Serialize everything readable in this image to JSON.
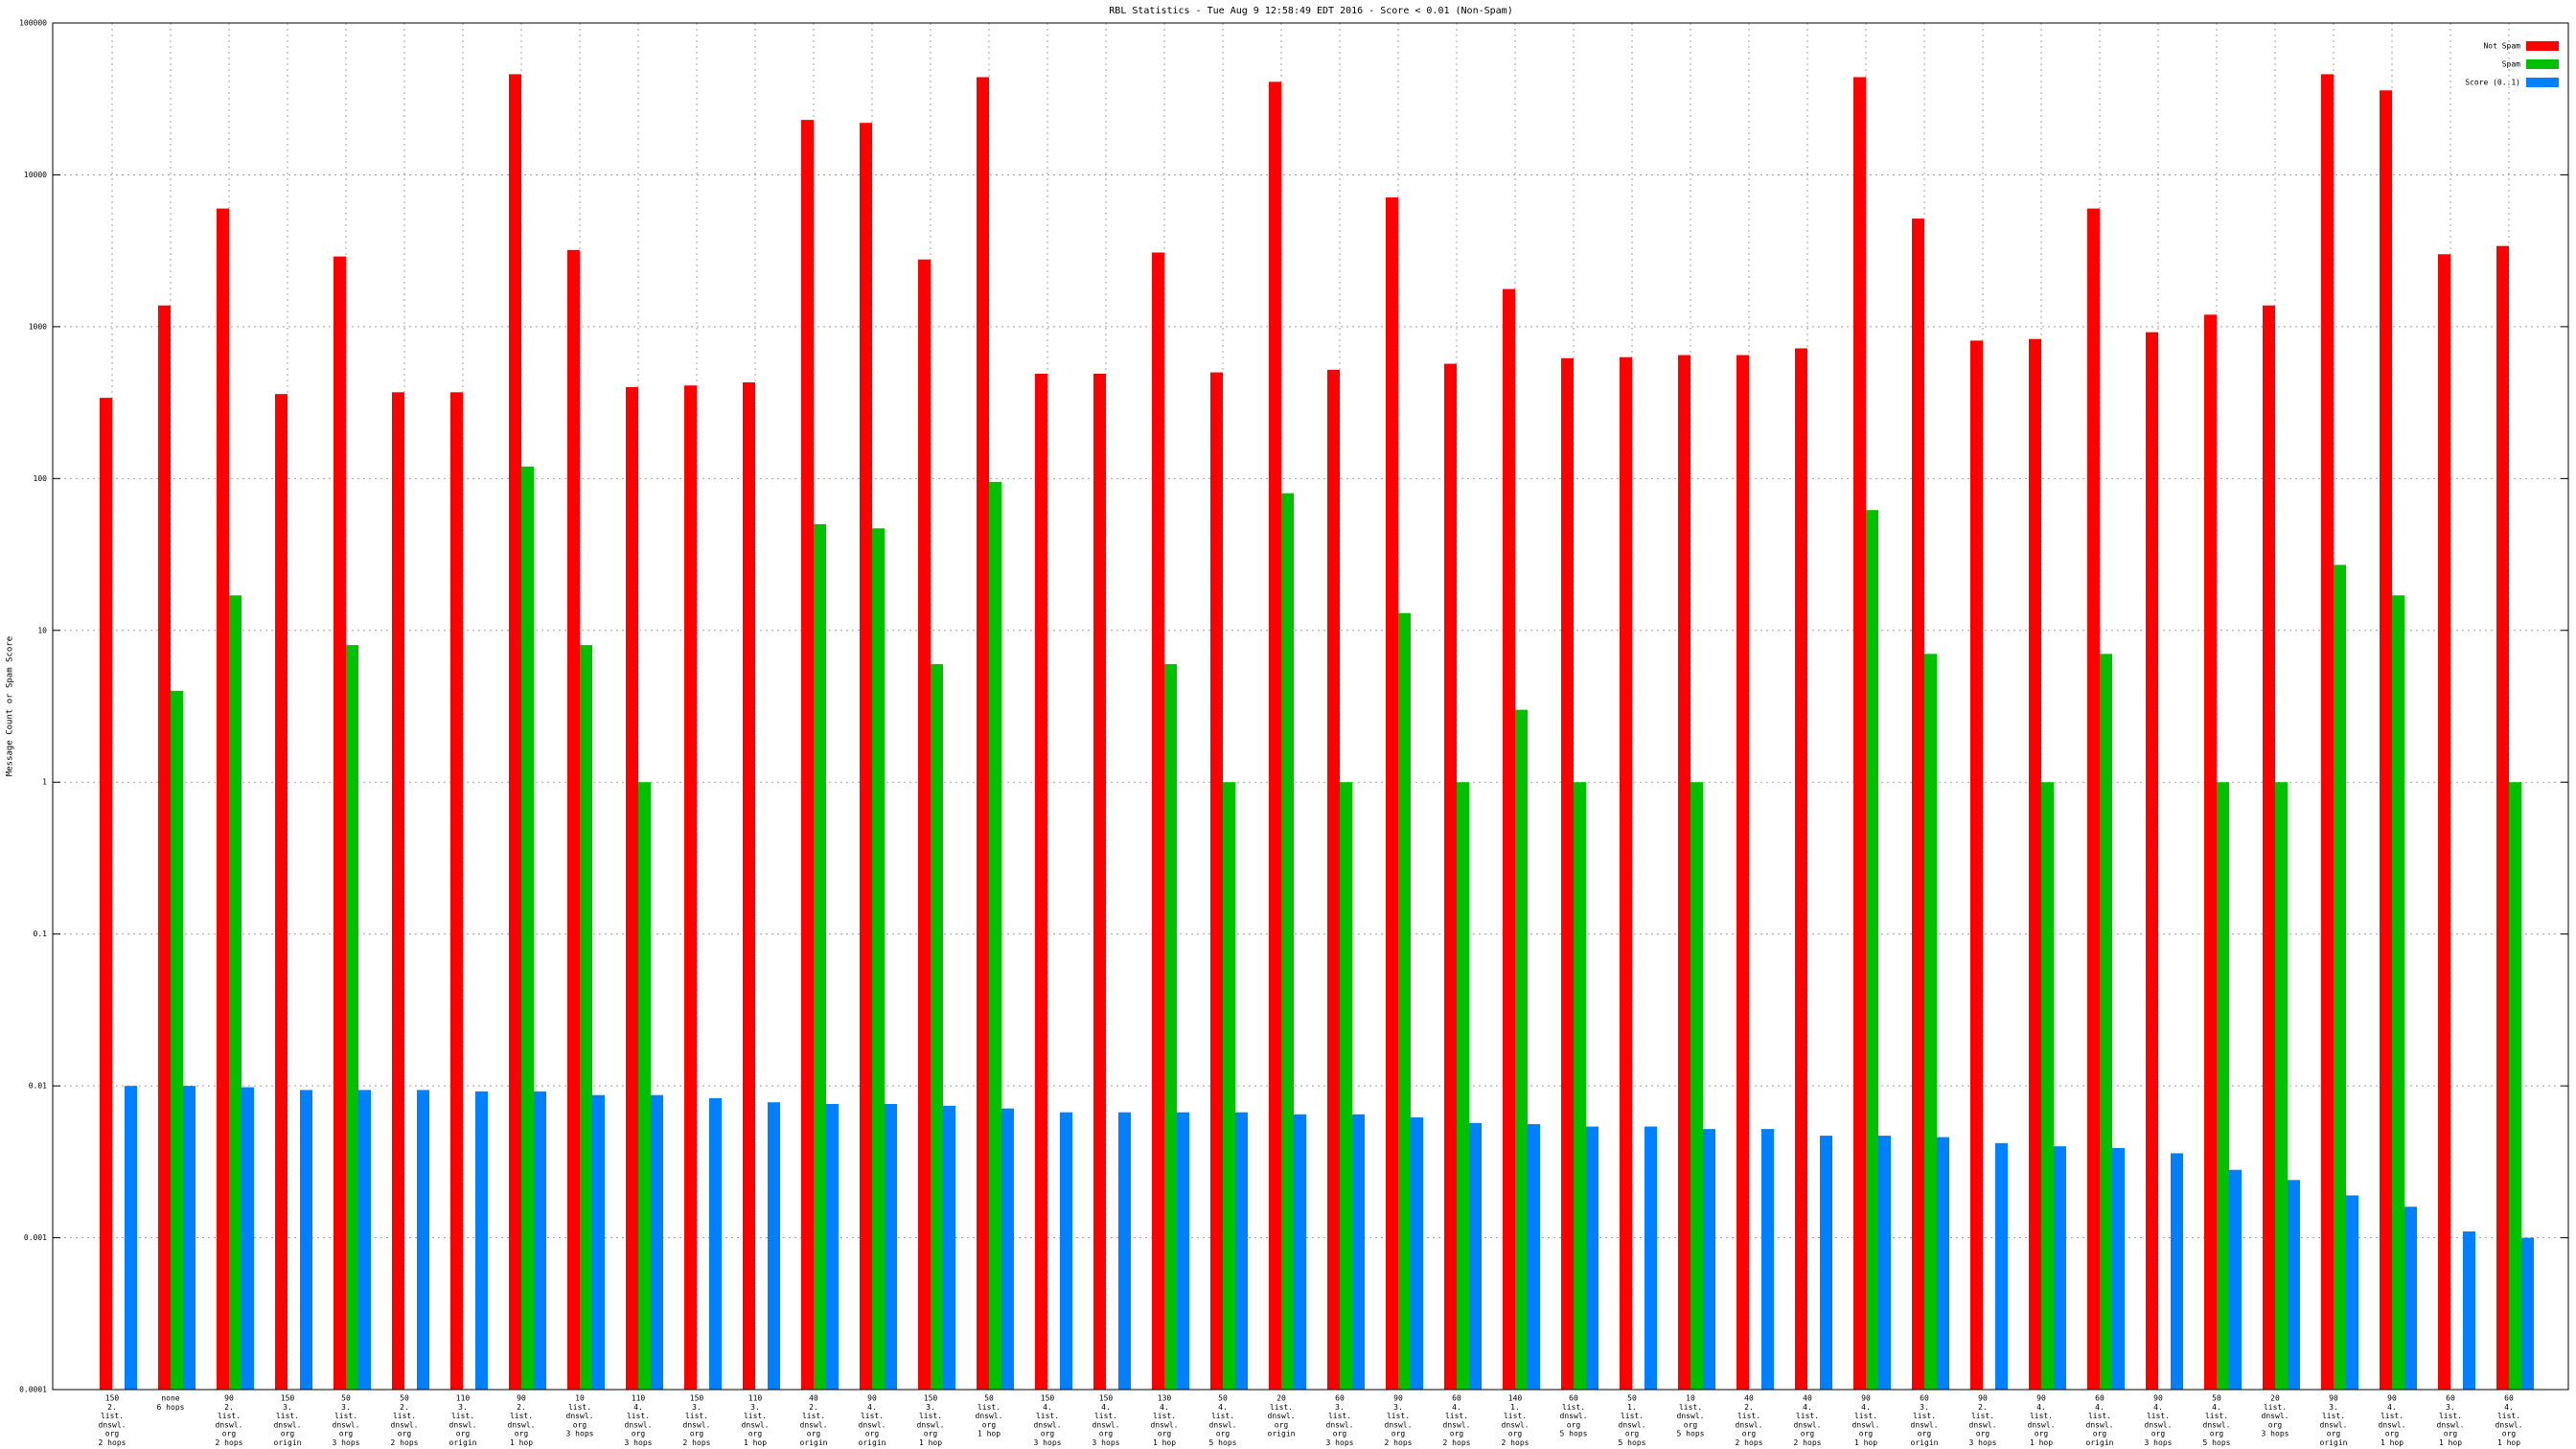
{
  "chart_data": {
    "type": "bar",
    "title": "RBL Statistics - Tue Aug  9 12:58:49 EDT 2016 - Score < 0.01 (Non-Spam)",
    "y_label": "Message Count or Spam Score",
    "log_scale": true,
    "grid": true,
    "legend": "top-right",
    "ylim": [
      0.0001,
      100000
    ],
    "yticks": [
      0.0001,
      0.001,
      0.01,
      0.1,
      1,
      10,
      100,
      1000,
      10000,
      100000
    ],
    "categories": [
      [
        "150",
        "2.",
        "list.",
        "dnswl.",
        "org",
        "2 hops"
      ],
      [
        "none",
        "6 hops"
      ],
      [
        "90",
        "2.",
        "list.",
        "dnswl.",
        "org",
        "2 hops"
      ],
      [
        "150",
        "3.",
        "list.",
        "dnswl.",
        "org",
        "origin"
      ],
      [
        "50",
        "3.",
        "list.",
        "dnswl.",
        "org",
        "3 hops"
      ],
      [
        "50",
        "2.",
        "list.",
        "dnswl.",
        "org",
        "2 hops"
      ],
      [
        "110",
        "3.",
        "list.",
        "dnswl.",
        "org",
        "origin"
      ],
      [
        "90",
        "2.",
        "list.",
        "dnswl.",
        "org",
        "1 hop"
      ],
      [
        "10",
        "list.",
        "dnswl.",
        "org",
        "3 hops"
      ],
      [
        "110",
        "4.",
        "list.",
        "dnswl.",
        "org",
        "3 hops"
      ],
      [
        "150",
        "3.",
        "list.",
        "dnswl.",
        "org",
        "2 hops"
      ],
      [
        "110",
        "3.",
        "list.",
        "dnswl.",
        "org",
        "1 hop"
      ],
      [
        "40",
        "2.",
        "list.",
        "dnswl.",
        "org",
        "origin"
      ],
      [
        "90",
        "4.",
        "list.",
        "dnswl.",
        "org",
        "origin"
      ],
      [
        "150",
        "3.",
        "list.",
        "dnswl.",
        "org",
        "1 hop"
      ],
      [
        "50",
        "list.",
        "dnswl.",
        "org",
        "1 hop"
      ],
      [
        "150",
        "4.",
        "list.",
        "dnswl.",
        "org",
        "3 hops"
      ],
      [
        "150",
        "4.",
        "list.",
        "dnswl.",
        "org",
        "3 hops"
      ],
      [
        "130",
        "4.",
        "list.",
        "dnswl.",
        "org",
        "1 hop"
      ],
      [
        "50",
        "4.",
        "list.",
        "dnswl.",
        "org",
        "5 hops"
      ],
      [
        "20",
        "list.",
        "dnswl.",
        "org",
        "origin"
      ],
      [
        "60",
        "3.",
        "list.",
        "dnswl.",
        "org",
        "3 hops"
      ],
      [
        "90",
        "3.",
        "list.",
        "dnswl.",
        "org",
        "2 hops"
      ],
      [
        "60",
        "4.",
        "list.",
        "dnswl.",
        "org",
        "2 hops"
      ],
      [
        "140",
        "1.",
        "list.",
        "dnswl.",
        "org",
        "2 hops"
      ],
      [
        "60",
        "list.",
        "dnswl.",
        "org",
        "5 hops"
      ],
      [
        "50",
        "1.",
        "list.",
        "dnswl.",
        "org",
        "5 hops"
      ],
      [
        "10",
        "list.",
        "dnswl.",
        "org",
        "5 hops"
      ],
      [
        "40",
        "2.",
        "list.",
        "dnswl.",
        "org",
        "2 hops"
      ],
      [
        "40",
        "4.",
        "list.",
        "dnswl.",
        "org",
        "2 hops"
      ],
      [
        "90",
        "4.",
        "list.",
        "dnswl.",
        "org",
        "1 hop"
      ],
      [
        "60",
        "3.",
        "list.",
        "dnswl.",
        "org",
        "origin"
      ],
      [
        "90",
        "2.",
        "list.",
        "dnswl.",
        "org",
        "3 hops"
      ],
      [
        "90",
        "4.",
        "list.",
        "dnswl.",
        "org",
        "1 hop"
      ],
      [
        "60",
        "4.",
        "list.",
        "dnswl.",
        "org",
        "origin"
      ],
      [
        "90",
        "4.",
        "list.",
        "dnswl.",
        "org",
        "3 hops"
      ],
      [
        "50",
        "4.",
        "list.",
        "dnswl.",
        "org",
        "5 hops"
      ],
      [
        "20",
        "list.",
        "dnswl.",
        "org",
        "3 hops"
      ],
      [
        "90",
        "3.",
        "list.",
        "dnswl.",
        "org",
        "origin"
      ],
      [
        "90",
        "4.",
        "list.",
        "dnswl.",
        "org",
        "1 hop"
      ],
      [
        "60",
        "3.",
        "list.",
        "dnswl.",
        "org",
        "1 hop"
      ],
      [
        "60",
        "4.",
        "list.",
        "dnswl.",
        "org",
        "1 hop"
      ]
    ],
    "series": [
      {
        "name": "Not Spam",
        "color": "#ff0000",
        "values": [
          340,
          1380,
          6000,
          360,
          2900,
          370,
          370,
          46000,
          3200,
          400,
          410,
          430,
          23000,
          22000,
          2770,
          44000,
          490,
          490,
          3080,
          500,
          41000,
          520,
          7100,
          570,
          1770,
          620,
          630,
          650,
          650,
          720,
          44000,
          5150,
          810,
          830,
          6000,
          920,
          1200,
          1380,
          46000,
          36000,
          3000,
          3400
        ]
      },
      {
        "name": "Spam",
        "color": "#00c000",
        "values": [
          null,
          4,
          17,
          null,
          8,
          null,
          null,
          120,
          8,
          1,
          null,
          null,
          50,
          47,
          6,
          95,
          null,
          null,
          6,
          1,
          80,
          1,
          13,
          1,
          3,
          1,
          null,
          1,
          null,
          null,
          62,
          7,
          null,
          1,
          7,
          null,
          1,
          1,
          27,
          17,
          null,
          1
        ]
      },
      {
        "name": "Score (0..1)",
        "color": "#0080ff",
        "values": [
          0.01,
          0.01,
          0.0098,
          0.0094,
          0.0094,
          0.0094,
          0.0092,
          0.0092,
          0.0087,
          0.0087,
          0.0083,
          0.0078,
          0.0076,
          0.0076,
          0.0074,
          0.0071,
          0.0067,
          0.0067,
          0.0067,
          0.0067,
          0.0065,
          0.0065,
          0.0062,
          0.0057,
          0.0056,
          0.0054,
          0.0054,
          0.0052,
          0.0052,
          0.0047,
          0.0047,
          0.0046,
          0.0042,
          0.004,
          0.0039,
          0.0036,
          0.0028,
          0.0024,
          0.0019,
          0.0016,
          0.0011,
          0.001
        ]
      }
    ]
  }
}
